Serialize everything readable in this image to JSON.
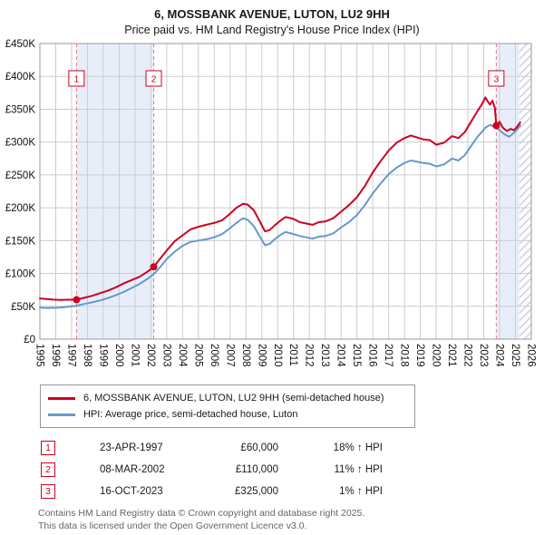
{
  "title": "6, MOSSBANK AVENUE, LUTON, LU2 9HH",
  "subtitle": "Price paid vs. HM Land Registry's House Price Index (HPI)",
  "chart_data": {
    "type": "line",
    "x_range": [
      1995,
      2026
    ],
    "y_range": [
      0,
      450000
    ],
    "x_ticks": [
      1995,
      1996,
      1997,
      1998,
      1999,
      2000,
      2001,
      2002,
      2003,
      2004,
      2005,
      2006,
      2007,
      2008,
      2009,
      2010,
      2011,
      2012,
      2013,
      2014,
      2015,
      2016,
      2017,
      2018,
      2019,
      2020,
      2021,
      2022,
      2023,
      2024,
      2025,
      2026
    ],
    "y_ticks": [
      {
        "value": 0,
        "label": "£0"
      },
      {
        "value": 50000,
        "label": "£50K"
      },
      {
        "value": 100000,
        "label": "£100K"
      },
      {
        "value": 150000,
        "label": "£150K"
      },
      {
        "value": 200000,
        "label": "£200K"
      },
      {
        "value": 250000,
        "label": "£250K"
      },
      {
        "value": 300000,
        "label": "£300K"
      },
      {
        "value": 350000,
        "label": "£350K"
      },
      {
        "value": 400000,
        "label": "£400K"
      },
      {
        "value": 450000,
        "label": "£450K"
      }
    ],
    "colors": {
      "red": "#cc0022",
      "blue": "#6699cc",
      "band": "#e8eef9",
      "dashed": "#e07b8a",
      "grid": "#cccccc",
      "hatch": "#c9d0da",
      "border": "#999999"
    },
    "bands": [
      [
        1997.31,
        2002.18
      ],
      [
        2023.79,
        2025.25
      ]
    ],
    "hatch_from": 2025.25,
    "series": [
      {
        "id": "property",
        "name": "6, MOSSBANK AVENUE, LUTON, LU2 9HH (semi-detached house)",
        "color": "#cc0022",
        "points": [
          [
            1995.0,
            62000
          ],
          [
            1995.4,
            61200
          ],
          [
            1995.8,
            60200
          ],
          [
            1996.3,
            59600
          ],
          [
            1996.8,
            60000
          ],
          [
            1997.31,
            60000
          ],
          [
            1997.8,
            63000
          ],
          [
            1998.3,
            66000
          ],
          [
            1998.8,
            70000
          ],
          [
            1999.3,
            74000
          ],
          [
            1999.8,
            79000
          ],
          [
            2000.3,
            85000
          ],
          [
            2000.8,
            90000
          ],
          [
            2001.3,
            95000
          ],
          [
            2001.8,
            103000
          ],
          [
            2002.18,
            110000
          ],
          [
            2002.6,
            123000
          ],
          [
            2003.0,
            135000
          ],
          [
            2003.5,
            149000
          ],
          [
            2004.0,
            158000
          ],
          [
            2004.5,
            167000
          ],
          [
            2005.0,
            171000
          ],
          [
            2005.5,
            174000
          ],
          [
            2006.0,
            177000
          ],
          [
            2006.5,
            181000
          ],
          [
            2007.0,
            191000
          ],
          [
            2007.4,
            200000
          ],
          [
            2007.8,
            206000
          ],
          [
            2008.1,
            205000
          ],
          [
            2008.5,
            196000
          ],
          [
            2008.9,
            178000
          ],
          [
            2009.2,
            164000
          ],
          [
            2009.5,
            166000
          ],
          [
            2009.8,
            173000
          ],
          [
            2010.2,
            181000
          ],
          [
            2010.5,
            186000
          ],
          [
            2011.0,
            183000
          ],
          [
            2011.4,
            178000
          ],
          [
            2011.8,
            176000
          ],
          [
            2012.2,
            174000
          ],
          [
            2012.6,
            178000
          ],
          [
            2013.0,
            179000
          ],
          [
            2013.5,
            184000
          ],
          [
            2014.0,
            194000
          ],
          [
            2014.5,
            204000
          ],
          [
            2015.0,
            216000
          ],
          [
            2015.5,
            233000
          ],
          [
            2016.0,
            254000
          ],
          [
            2016.5,
            271000
          ],
          [
            2017.0,
            287000
          ],
          [
            2017.5,
            299000
          ],
          [
            2018.0,
            306000
          ],
          [
            2018.4,
            310000
          ],
          [
            2018.8,
            307000
          ],
          [
            2019.2,
            304000
          ],
          [
            2019.6,
            303000
          ],
          [
            2020.0,
            296000
          ],
          [
            2020.5,
            299000
          ],
          [
            2021.0,
            309000
          ],
          [
            2021.4,
            306000
          ],
          [
            2021.8,
            315000
          ],
          [
            2022.2,
            331000
          ],
          [
            2022.6,
            347000
          ],
          [
            2022.9,
            358000
          ],
          [
            2023.1,
            368000
          ],
          [
            2023.25,
            362000
          ],
          [
            2023.4,
            357000
          ],
          [
            2023.55,
            363000
          ],
          [
            2023.7,
            352000
          ],
          [
            2023.79,
            325000
          ],
          [
            2024.0,
            331000
          ],
          [
            2024.2,
            322000
          ],
          [
            2024.45,
            317000
          ],
          [
            2024.7,
            320000
          ],
          [
            2024.9,
            318000
          ],
          [
            2025.1,
            323000
          ],
          [
            2025.3,
            330000
          ]
        ]
      },
      {
        "id": "hpi",
        "name": "HPI: Average price, semi-detached house, Luton",
        "color": "#6699cc",
        "points": [
          [
            1995.0,
            48000
          ],
          [
            1995.5,
            47500
          ],
          [
            1996.0,
            47800
          ],
          [
            1996.5,
            48500
          ],
          [
            1997.0,
            50000
          ],
          [
            1997.31,
            50800
          ],
          [
            1997.8,
            53500
          ],
          [
            1998.3,
            56000
          ],
          [
            1998.8,
            59000
          ],
          [
            1999.3,
            62500
          ],
          [
            1999.8,
            67000
          ],
          [
            2000.3,
            72000
          ],
          [
            2000.8,
            78000
          ],
          [
            2001.3,
            84000
          ],
          [
            2001.8,
            92000
          ],
          [
            2002.18,
            99000
          ],
          [
            2002.6,
            110000
          ],
          [
            2003.0,
            122000
          ],
          [
            2003.5,
            133000
          ],
          [
            2004.0,
            142000
          ],
          [
            2004.5,
            148000
          ],
          [
            2005.0,
            150000
          ],
          [
            2005.5,
            152000
          ],
          [
            2006.0,
            155000
          ],
          [
            2006.5,
            160000
          ],
          [
            2007.0,
            169000
          ],
          [
            2007.4,
            177000
          ],
          [
            2007.8,
            184000
          ],
          [
            2008.1,
            182000
          ],
          [
            2008.5,
            172000
          ],
          [
            2008.9,
            155000
          ],
          [
            2009.2,
            143000
          ],
          [
            2009.5,
            145000
          ],
          [
            2009.8,
            152000
          ],
          [
            2010.2,
            159000
          ],
          [
            2010.5,
            163000
          ],
          [
            2011.0,
            160000
          ],
          [
            2011.4,
            157000
          ],
          [
            2011.8,
            155000
          ],
          [
            2012.2,
            153000
          ],
          [
            2012.6,
            156000
          ],
          [
            2013.0,
            157000
          ],
          [
            2013.5,
            161000
          ],
          [
            2014.0,
            170000
          ],
          [
            2014.5,
            178000
          ],
          [
            2015.0,
            189000
          ],
          [
            2015.5,
            204000
          ],
          [
            2016.0,
            222000
          ],
          [
            2016.5,
            237000
          ],
          [
            2017.0,
            251000
          ],
          [
            2017.5,
            261000
          ],
          [
            2018.0,
            268000
          ],
          [
            2018.4,
            272000
          ],
          [
            2018.8,
            270000
          ],
          [
            2019.2,
            268000
          ],
          [
            2019.6,
            267000
          ],
          [
            2020.0,
            263000
          ],
          [
            2020.5,
            266000
          ],
          [
            2021.0,
            275000
          ],
          [
            2021.4,
            272000
          ],
          [
            2021.8,
            280000
          ],
          [
            2022.2,
            294000
          ],
          [
            2022.6,
            308000
          ],
          [
            2022.9,
            316000
          ],
          [
            2023.1,
            322000
          ],
          [
            2023.4,
            326000
          ],
          [
            2023.7,
            323000
          ],
          [
            2023.79,
            322000
          ],
          [
            2024.0,
            318000
          ],
          [
            2024.3,
            312000
          ],
          [
            2024.6,
            308000
          ],
          [
            2024.9,
            314000
          ],
          [
            2025.1,
            319000
          ],
          [
            2025.3,
            326000
          ]
        ]
      }
    ],
    "sales": [
      {
        "label": "1",
        "year": 1997.31,
        "price": 60000
      },
      {
        "label": "2",
        "year": 2002.18,
        "price": 110000
      },
      {
        "label": "3",
        "year": 2023.79,
        "price": 325000
      }
    ]
  },
  "legend": {
    "property_label": "6, MOSSBANK AVENUE, LUTON, LU2 9HH (semi-detached house)",
    "hpi_label": "HPI: Average price, semi-detached house, Luton"
  },
  "transactions": [
    {
      "num": "1",
      "date": "23-APR-1997",
      "price": "£60,000",
      "hpi": "18% ↑ HPI"
    },
    {
      "num": "2",
      "date": "08-MAR-2002",
      "price": "£110,000",
      "hpi": "11% ↑ HPI"
    },
    {
      "num": "3",
      "date": "16-OCT-2023",
      "price": "£325,000",
      "hpi": "1% ↑ HPI"
    }
  ],
  "footer": {
    "line1": "Contains HM Land Registry data © Crown copyright and database right 2025.",
    "line2": "This data is licensed under the Open Government Licence v3.0."
  }
}
